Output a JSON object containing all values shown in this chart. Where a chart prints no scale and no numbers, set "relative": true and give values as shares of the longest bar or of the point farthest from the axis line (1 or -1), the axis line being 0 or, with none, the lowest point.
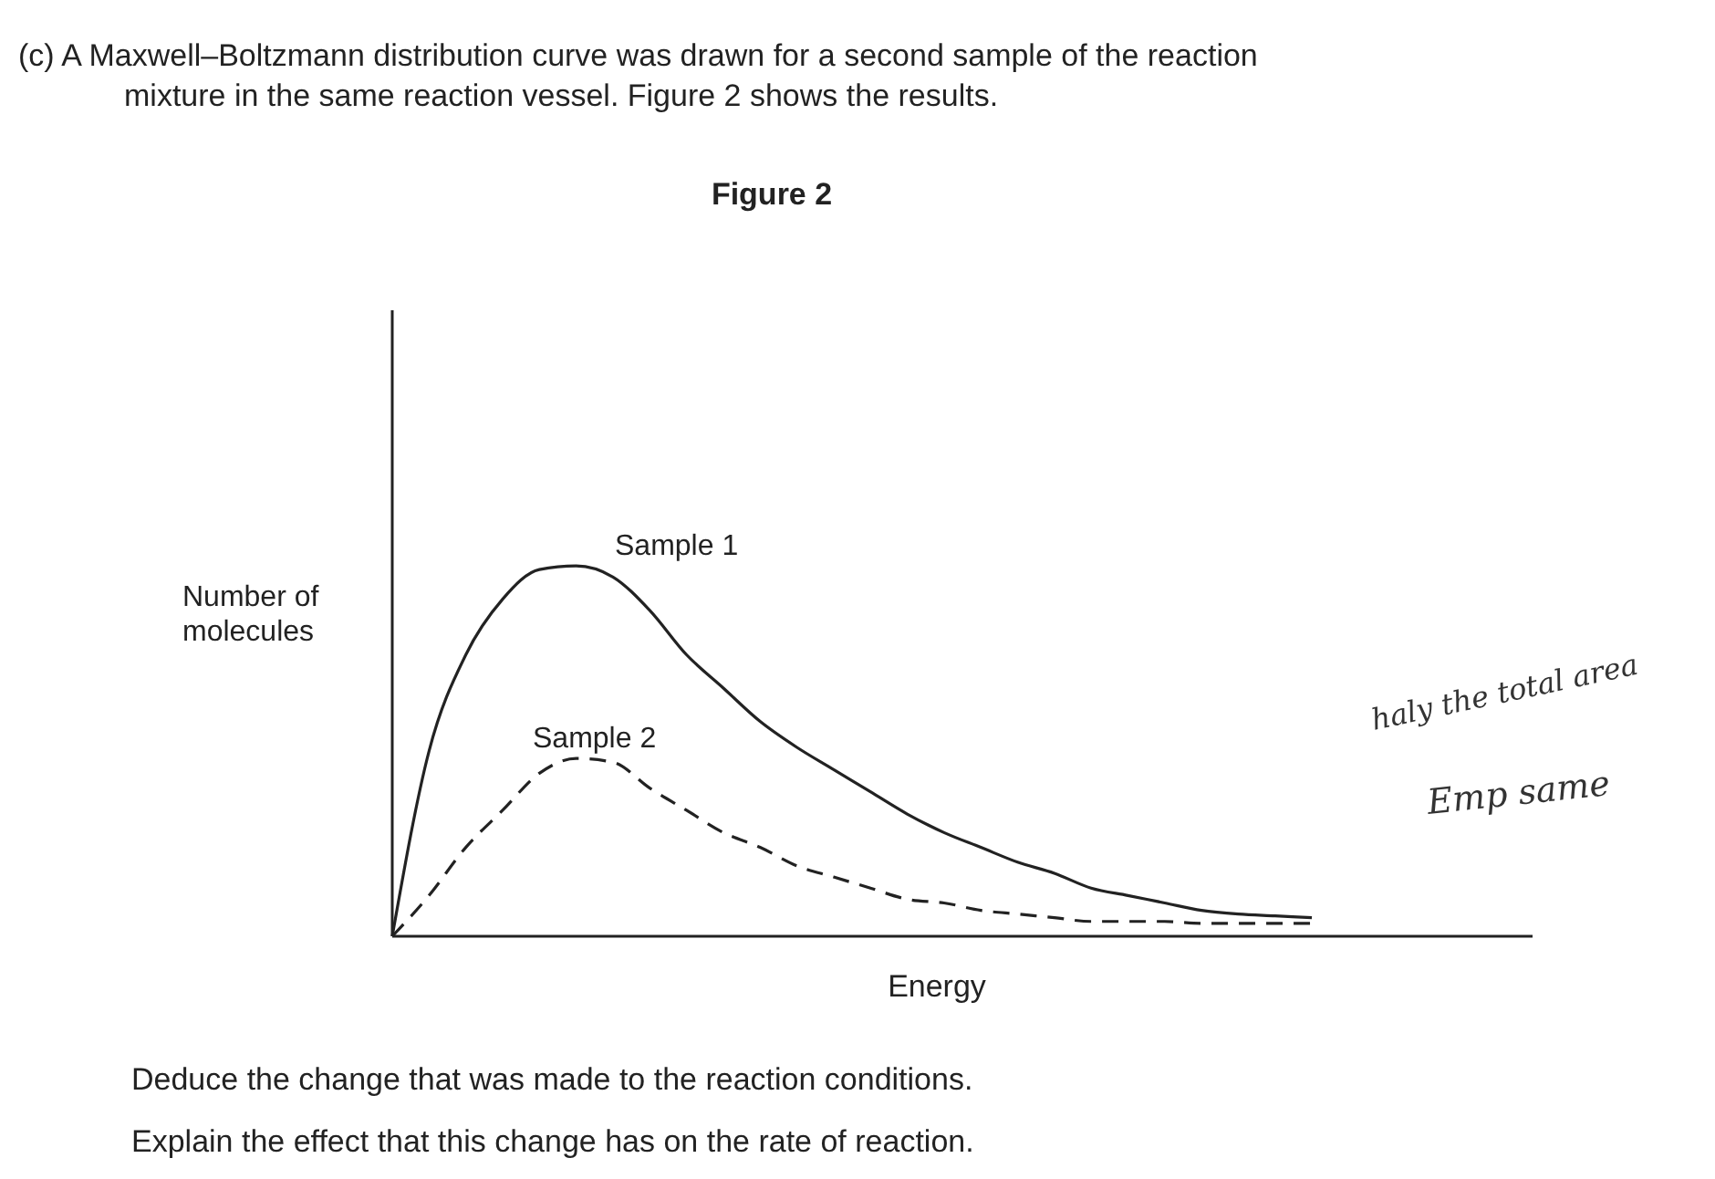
{
  "chart_data": {
    "type": "line",
    "relative": true,
    "title": "Figure 2",
    "xlabel": "Energy",
    "ylabel": "Number of molecules",
    "legend": false,
    "categories": [
      null,
      null,
      null,
      null,
      null,
      null,
      null,
      null,
      null,
      null,
      null,
      null,
      null,
      null,
      null,
      null,
      null,
      null,
      null,
      null,
      null,
      null,
      null,
      null,
      null,
      null,
      null,
      null,
      null,
      null,
      null,
      null
    ],
    "series": [
      {
        "name": "Sample 1",
        "color": "#222222",
        "line_style": "solid",
        "values": [
          0,
          0.5,
          0.76,
          0.91,
          0.99,
          1,
          0.97,
          0.88,
          0.76,
          0.67,
          0.58,
          0.51,
          0.45,
          0.39,
          0.33,
          0.28,
          0.24,
          0.2,
          0.17,
          0.13,
          0.11,
          0.09,
          0.07,
          0.06,
          0.055,
          0.05,
          null,
          null,
          null,
          null,
          null,
          null
        ]
      },
      {
        "name": "Sample 2",
        "color": "#222222",
        "line_style": "dashed",
        "values": [
          0,
          0.11,
          0.24,
          0.34,
          0.44,
          0.48,
          0.47,
          0.4,
          0.34,
          0.28,
          0.24,
          0.19,
          0.16,
          0.13,
          0.1,
          0.09,
          0.07,
          0.06,
          0.05,
          0.04,
          0.04,
          0.04,
          0.035,
          0.035,
          0.035,
          0.035,
          null,
          null,
          null,
          null,
          null,
          null
        ]
      }
    ],
    "annotations": [
      "(c)  A Maxwell–Boltzmann distribution curve was drawn for a second sample of the reaction mixture in the same reaction vessel. Figure 2 shows the results.",
      "haly the total area",
      "Emp same",
      "Deduce the change that was made to the reaction conditions.",
      "Explain the effect that this change has on the rate of reaction."
    ]
  }
}
